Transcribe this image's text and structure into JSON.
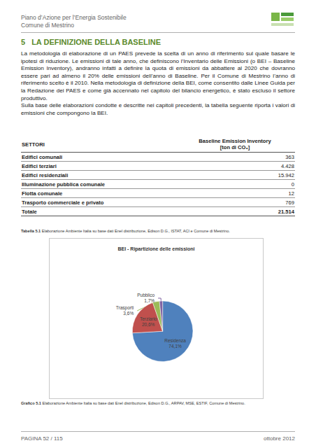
{
  "header": {
    "title": "Piano d’Azione per l’Energia Sostenibile",
    "subtitle": "Comune di Mestrino"
  },
  "section": {
    "number": "5",
    "title": "LA DEFINIZIONE DELLA BASELINE"
  },
  "paragraphs": [
    "La metodologia di elaborazione di un PAES prevede la scelta di un anno di riferimento sul quale basare le ipotesi di riduzione. Le emissioni di tale anno, che definiscono l’Inventario delle Emissioni (o BEI – Baseline Emission Inventory), andranno infatti a definire la quota di emissioni da abbattere al 2020 che dovranno essere pari ad almeno il 20% delle emissioni dell’anno di Baseline. Per il Comune di Mestrino l’anno di riferimento scelto è il 2010. Nella metodologia di definizione della BEI, come consentito dalle Linee Guida per la Redazione dei PAES e come già accennato nel capitolo del bilancio energetico, è stato escluso il settore produttivo.",
    "Sulla base delle elaborazioni condotte e descritte nei capitoli precedenti, la tabella seguente riporta i valori di emissioni che compongono la BEI."
  ],
  "table": {
    "header": [
      "SETTORI",
      "Baseline Emission Inventory\n[ton di CO₂]"
    ],
    "rows": [
      [
        "Edifici comunali",
        "363"
      ],
      [
        "Edifici terziari",
        "4.428"
      ],
      [
        "Edifici residenziali",
        "15.942"
      ],
      [
        "Illuminazione pubblica comunale",
        "0"
      ],
      [
        "Flotta comunale",
        "12"
      ],
      [
        "Trasporto commerciale e privato",
        "769"
      ],
      [
        "Totale",
        "21.514"
      ]
    ],
    "caption_label": "Tabella 5.1",
    "caption": "Elaborazione Ambiente Italia su base dati Enel distribuzione, Edison D.G., ISTAT, ACI e Comune di Mestrino."
  },
  "chart_data": {
    "type": "pie",
    "title": "BEI - Ripartizione delle emissioni",
    "categories": [
      "Residenza",
      "Terziario",
      "Trasporti",
      "Pubblico"
    ],
    "values": [
      74.1,
      20.6,
      3.6,
      1.7
    ],
    "value_labels": [
      "74,1%",
      "20,6%",
      "3,6%",
      "1,7%"
    ],
    "colors": [
      "#4f81bd",
      "#c0504d",
      "#9bbb59",
      "#8064a2"
    ],
    "data_labels": true
  },
  "chart_caption": {
    "label": "Grafico 5.1",
    "text": "Elaborazione Ambiente Italia su base dati Enel distribuzione, Edison D.G., ARPAV, MSE, ESTIF, Comune di Mestrino."
  },
  "footer": {
    "page": "PAGINA 52 / 115",
    "date": "ottobre 2012"
  }
}
